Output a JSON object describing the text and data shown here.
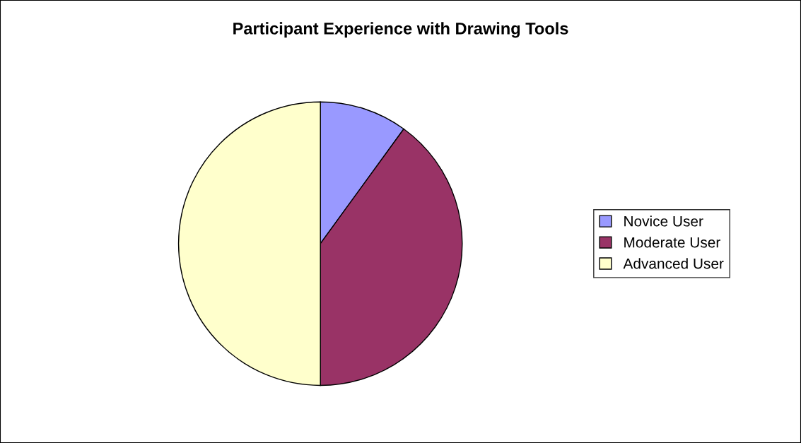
{
  "chart_data": {
    "type": "pie",
    "title": "Participant Experience with Drawing Tools",
    "categories": [
      "Novice User",
      "Moderate User",
      "Advanced User"
    ],
    "values": [
      10,
      40,
      50
    ],
    "colors": [
      "#9999ff",
      "#993366",
      "#ffffcc"
    ],
    "legend": "right"
  }
}
